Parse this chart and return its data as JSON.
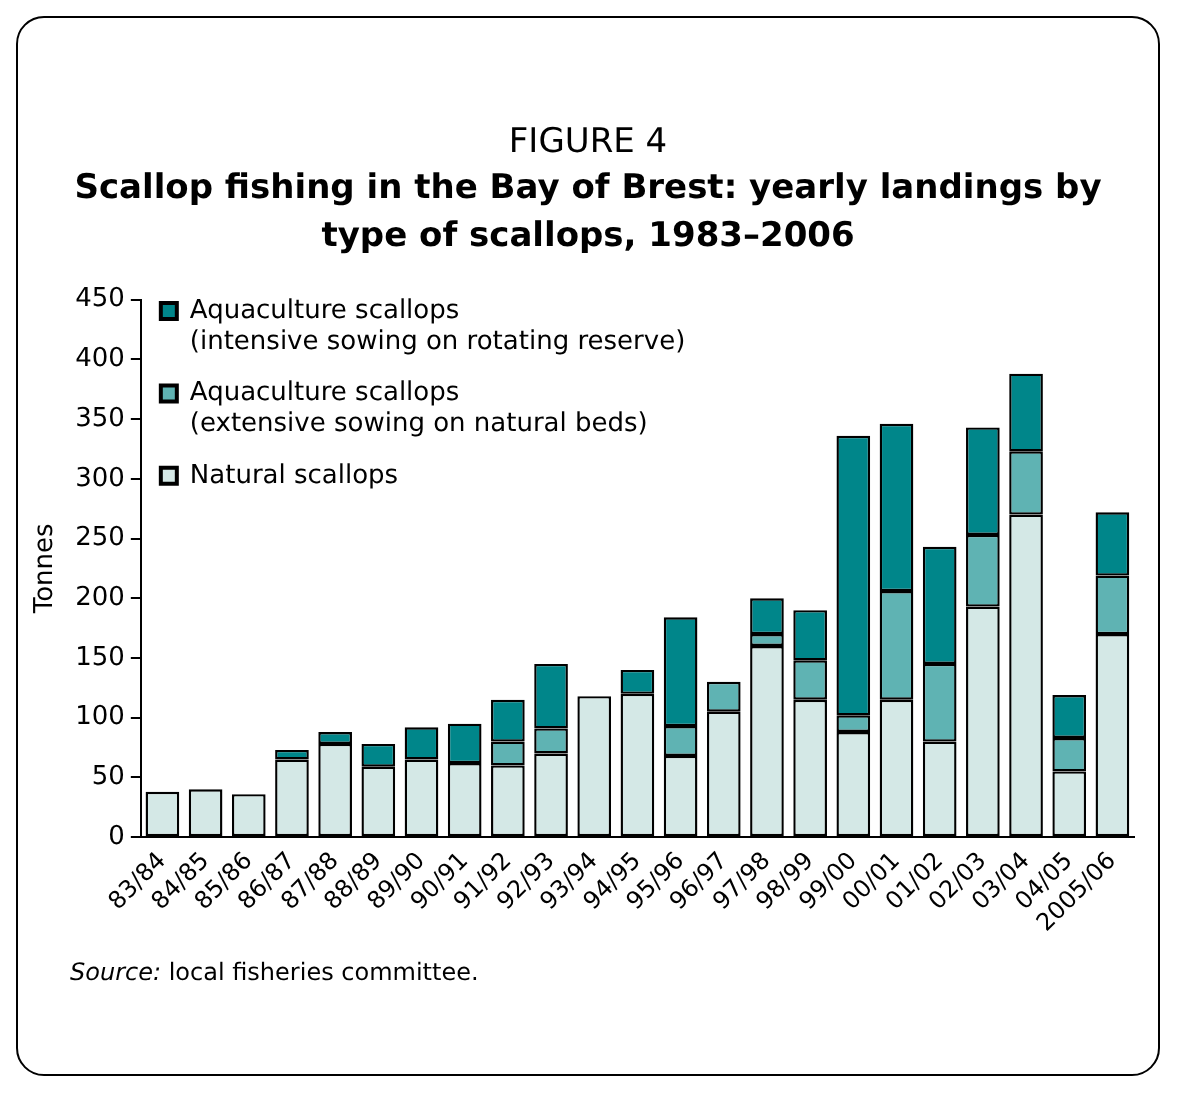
{
  "chart_data": {
    "type": "bar",
    "title": "FIGURE 4",
    "subtitle": "Scallop fishing in the Bay of Brest: yearly landings by type of scallops, 1983–2006",
    "ylabel": "Tonnes",
    "categories": [
      "83/84",
      "84/85",
      "85/86",
      "86/87",
      "87/88",
      "88/89",
      "89/90",
      "90/91",
      "91/92",
      "92/93",
      "93/94",
      "94/95",
      "95/96",
      "96/97",
      "97/98",
      "98/99",
      "99/00",
      "00/01",
      "01/02",
      "02/03",
      "03/04",
      "04/05",
      "2005/06"
    ],
    "series": [
      {
        "name": "Natural scallops",
        "color": "#d4e8e6",
        "values": [
          38,
          40,
          36,
          65,
          78,
          59,
          65,
          62,
          60,
          70,
          118,
          120,
          68,
          105,
          160,
          115,
          88,
          115,
          80,
          193,
          270,
          55,
          170
        ]
      },
      {
        "name": "Aquaculture scallops\n(extensive sowing on natural beds)",
        "color": "#5fb3b3",
        "values": [
          0,
          0,
          0,
          0,
          0,
          0,
          0,
          0,
          20,
          21,
          0,
          0,
          25,
          25,
          10,
          33,
          14,
          91,
          65,
          60,
          53,
          28,
          49
        ]
      },
      {
        "name": "Aquaculture scallops\n(intensive sowing on rotating reserve)",
        "color": "#00868a",
        "values": [
          0,
          0,
          0,
          8,
          10,
          19,
          27,
          33,
          35,
          54,
          0,
          20,
          91,
          0,
          30,
          42,
          234,
          140,
          98,
          90,
          65,
          36,
          53
        ]
      }
    ],
    "stacked": true,
    "ylim": [
      0,
      450
    ],
    "yticks": [
      0,
      50,
      100,
      150,
      200,
      250,
      300,
      350,
      400,
      450
    ],
    "grid": false,
    "legend": "top left",
    "annotations": [
      "Source: local fisheries committee."
    ]
  }
}
